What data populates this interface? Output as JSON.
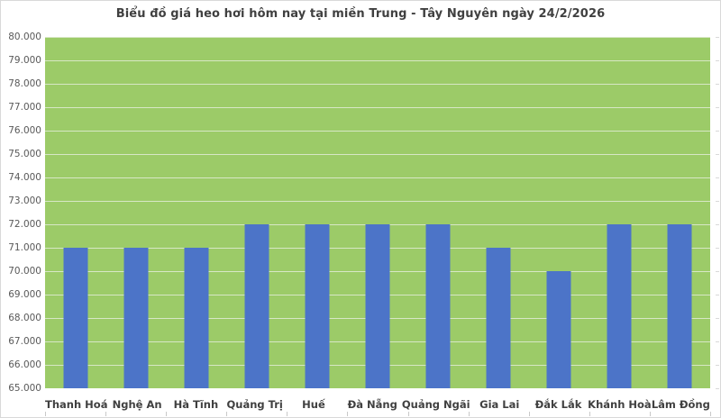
{
  "chart_data": {
    "type": "bar",
    "title": "Biểu đồ giá heo hơi hôm nay tại miền Trung - Tây Nguyên ngày 24/2/2026",
    "categories": [
      "Thanh Hoá",
      "Nghệ An",
      "Hà Tĩnh",
      "Quảng Trị",
      "Huế",
      "Đà Nẵng",
      "Quảng Ngãi",
      "Gia Lai",
      "Đắk Lắk",
      "Khánh Hoà",
      "Lâm Đồng"
    ],
    "values": [
      71000,
      71000,
      71000,
      72000,
      72000,
      72000,
      72000,
      71000,
      70000,
      72000,
      72000
    ],
    "xlabel": "",
    "ylabel": "",
    "ylim": [
      65000,
      80000
    ],
    "y_tick_step": 1000,
    "y_tick_labels": [
      "80.000",
      "79.000",
      "78.000",
      "77.000",
      "76.000",
      "75.000",
      "74.000",
      "73.000",
      "72.000",
      "71.000",
      "70.000",
      "69.000",
      "68.000",
      "67.000",
      "66.000",
      "65.000"
    ],
    "grid": true,
    "legend": false,
    "colors": {
      "bar": "#4C74C8",
      "plot_background": "#9CCB68",
      "gridline": "#D7E7C5",
      "title_text": "#404040",
      "y_axis_text": "#595959",
      "x_axis_text": "#404040",
      "frame_border": "#D9D9D9"
    }
  }
}
